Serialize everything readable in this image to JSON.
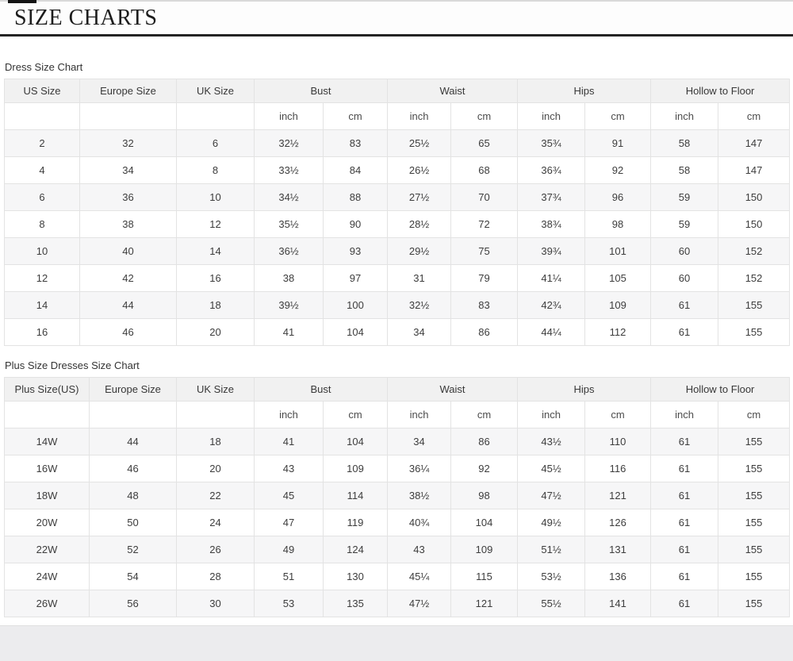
{
  "header": {
    "title": "SIZE CHARTS"
  },
  "tables": [
    {
      "title": "Dress Size Chart",
      "size_columns": [
        "US Size",
        "Europe Size",
        "UK Size"
      ],
      "measure_columns": [
        "Bust",
        "Waist",
        "Hips",
        "Hollow to Floor"
      ],
      "unit_row": [
        "inch",
        "cm",
        "inch",
        "cm",
        "inch",
        "cm",
        "inch",
        "cm"
      ],
      "rows": [
        [
          "2",
          "32",
          "6",
          "32½",
          "83",
          "25½",
          "65",
          "35¾",
          "91",
          "58",
          "147"
        ],
        [
          "4",
          "34",
          "8",
          "33½",
          "84",
          "26½",
          "68",
          "36¾",
          "92",
          "58",
          "147"
        ],
        [
          "6",
          "36",
          "10",
          "34½",
          "88",
          "27½",
          "70",
          "37¾",
          "96",
          "59",
          "150"
        ],
        [
          "8",
          "38",
          "12",
          "35½",
          "90",
          "28½",
          "72",
          "38¾",
          "98",
          "59",
          "150"
        ],
        [
          "10",
          "40",
          "14",
          "36½",
          "93",
          "29½",
          "75",
          "39¾",
          "101",
          "60",
          "152"
        ],
        [
          "12",
          "42",
          "16",
          "38",
          "97",
          "31",
          "79",
          "41¼",
          "105",
          "60",
          "152"
        ],
        [
          "14",
          "44",
          "18",
          "39½",
          "100",
          "32½",
          "83",
          "42¾",
          "109",
          "61",
          "155"
        ],
        [
          "16",
          "46",
          "20",
          "41",
          "104",
          "34",
          "86",
          "44¼",
          "112",
          "61",
          "155"
        ]
      ]
    },
    {
      "title": "Plus Size Dresses Size Chart",
      "size_columns": [
        "Plus Size(US)",
        "Europe Size",
        "UK Size"
      ],
      "measure_columns": [
        "Bust",
        "Waist",
        "Hips",
        "Hollow to Floor"
      ],
      "unit_row": [
        "inch",
        "cm",
        "inch",
        "cm",
        "inch",
        "cm",
        "inch",
        "cm"
      ],
      "rows": [
        [
          "14W",
          "44",
          "18",
          "41",
          "104",
          "34",
          "86",
          "43½",
          "110",
          "61",
          "155"
        ],
        [
          "16W",
          "46",
          "20",
          "43",
          "109",
          "36¼",
          "92",
          "45½",
          "116",
          "61",
          "155"
        ],
        [
          "18W",
          "48",
          "22",
          "45",
          "114",
          "38½",
          "98",
          "47½",
          "121",
          "61",
          "155"
        ],
        [
          "20W",
          "50",
          "24",
          "47",
          "119",
          "40¾",
          "104",
          "49½",
          "126",
          "61",
          "155"
        ],
        [
          "22W",
          "52",
          "26",
          "49",
          "124",
          "43",
          "109",
          "51½",
          "131",
          "61",
          "155"
        ],
        [
          "24W",
          "54",
          "28",
          "51",
          "130",
          "45¼",
          "115",
          "53½",
          "136",
          "61",
          "155"
        ],
        [
          "26W",
          "56",
          "30",
          "53",
          "135",
          "47½",
          "121",
          "55½",
          "141",
          "61",
          "155"
        ]
      ]
    }
  ],
  "colors": {
    "header_bg": "#f1f1f1",
    "row_stripe": "#f6f6f7",
    "border": "#e3e3e3",
    "title_rule": "#242424",
    "footer_bg": "#ececee"
  }
}
